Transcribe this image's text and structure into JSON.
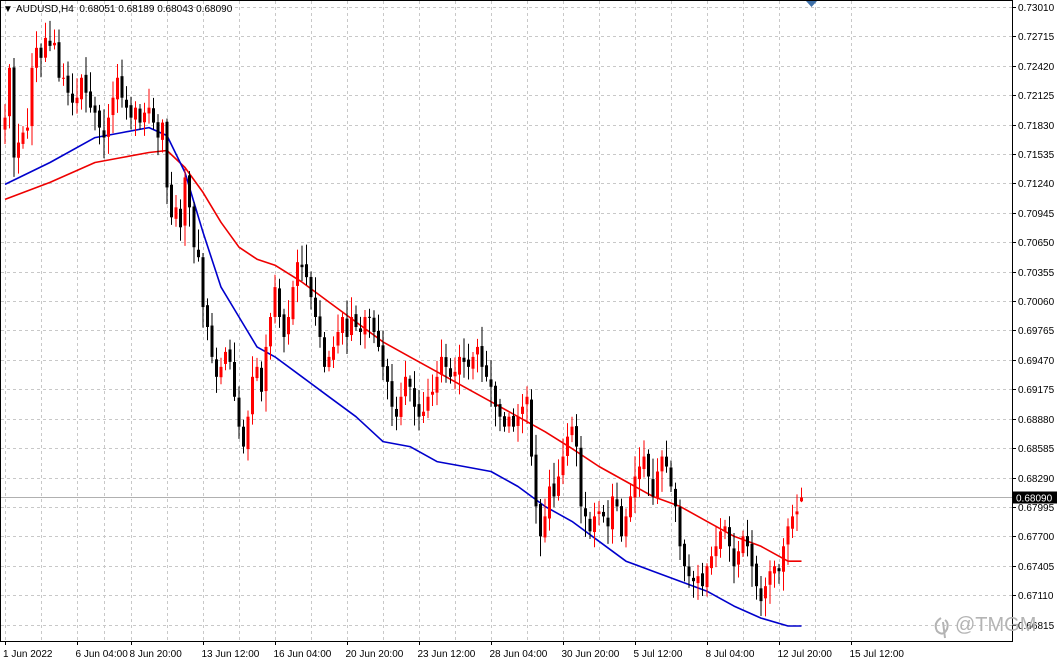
{
  "header": {
    "symbol_line": "AUDUSD,H4  0.68051 0.68189 0.68043 0.68090",
    "menu_arrow": "▼"
  },
  "watermark": {
    "text": "@TMGM"
  },
  "colors": {
    "background": "#ffffff",
    "grid": "#c8c8c8",
    "bull_candle": "#ff0000",
    "bear_candle": "#000000",
    "ma_fast": "#0000cc",
    "ma_slow": "#ee0000",
    "price_label_bg": "#000000",
    "price_line": "#b0b0b0"
  },
  "chart_data": {
    "type": "candlestick",
    "symbol": "AUDUSD",
    "timeframe": "H4",
    "ohlc_header": {
      "open": 0.68051,
      "high": 0.68189,
      "low": 0.68043,
      "close": 0.6809
    },
    "current_price": {
      "value": 0.6809,
      "label": "0.68090"
    },
    "ylim": [
      0.6665,
      0.7307
    ],
    "y_ticks": [
      {
        "value": 0.7301,
        "label": "0.73010"
      },
      {
        "value": 0.72715,
        "label": "0.72715"
      },
      {
        "value": 0.7242,
        "label": "0.72420"
      },
      {
        "value": 0.72125,
        "label": "0.72125"
      },
      {
        "value": 0.7183,
        "label": "0.71830"
      },
      {
        "value": 0.71535,
        "label": "0.71535"
      },
      {
        "value": 0.7124,
        "label": "0.71240"
      },
      {
        "value": 0.70945,
        "label": "0.70945"
      },
      {
        "value": 0.7065,
        "label": "0.70650"
      },
      {
        "value": 0.70355,
        "label": "0.70355"
      },
      {
        "value": 0.7006,
        "label": "0.70060"
      },
      {
        "value": 0.69765,
        "label": "0.69765"
      },
      {
        "value": 0.6947,
        "label": "0.69470"
      },
      {
        "value": 0.69175,
        "label": "0.69175"
      },
      {
        "value": 0.6888,
        "label": "0.68880"
      },
      {
        "value": 0.68585,
        "label": "0.68585"
      },
      {
        "value": 0.6829,
        "label": "0.68290"
      },
      {
        "value": 0.67995,
        "label": "0.67995"
      },
      {
        "value": 0.677,
        "label": "0.67700"
      },
      {
        "value": 0.67405,
        "label": "0.67405"
      },
      {
        "value": 0.6711,
        "label": "0.67110"
      },
      {
        "value": 0.66815,
        "label": "0.66815"
      }
    ],
    "x_ticks": [
      {
        "bar": 0,
        "label": "1 Jun 2022"
      },
      {
        "bar": 16,
        "label": "6 Jun 04:00"
      },
      {
        "bar": 28,
        "label": "8 Jun 20:00"
      },
      {
        "bar": 44,
        "label": "13 Jun 12:00"
      },
      {
        "bar": 60,
        "label": "16 Jun 04:00"
      },
      {
        "bar": 76,
        "label": "20 Jun 20:00"
      },
      {
        "bar": 92,
        "label": "23 Jun 12:00"
      },
      {
        "bar": 108,
        "label": "28 Jun 04:00"
      },
      {
        "bar": 124,
        "label": "30 Jun 20:00"
      },
      {
        "bar": 140,
        "label": "5 Jul 12:00"
      },
      {
        "bar": 156,
        "label": "8 Jul 04:00"
      },
      {
        "bar": 172,
        "label": "12 Jul 20:00"
      },
      {
        "bar": 188,
        "label": "15 Jul 12:00"
      }
    ],
    "close_path": [
      [
        0,
        0.719
      ],
      [
        1,
        0.724
      ],
      [
        2,
        0.715
      ],
      [
        3,
        0.7165
      ],
      [
        4,
        0.7175
      ],
      [
        5,
        0.718
      ],
      [
        6,
        0.724
      ],
      [
        7,
        0.726
      ],
      [
        8,
        0.725
      ],
      [
        9,
        0.727
      ],
      [
        10,
        0.7262
      ],
      [
        11,
        0.7265
      ],
      [
        12,
        0.723
      ],
      [
        13,
        0.723
      ],
      [
        14,
        0.7215
      ],
      [
        15,
        0.7205
      ],
      [
        16,
        0.721
      ],
      [
        17,
        0.723
      ],
      [
        18,
        0.7215
      ],
      [
        19,
        0.72
      ],
      [
        20,
        0.7195
      ],
      [
        21,
        0.718
      ],
      [
        22,
        0.717
      ],
      [
        23,
        0.719
      ],
      [
        24,
        0.721
      ],
      [
        25,
        0.723
      ],
      [
        26,
        0.721
      ],
      [
        27,
        0.72
      ],
      [
        28,
        0.719
      ],
      [
        29,
        0.72
      ],
      [
        30,
        0.7185
      ],
      [
        31,
        0.7195
      ],
      [
        32,
        0.72
      ],
      [
        33,
        0.7185
      ],
      [
        34,
        0.717
      ],
      [
        35,
        0.7185
      ],
      [
        36,
        0.712
      ],
      [
        37,
        0.709
      ],
      [
        38,
        0.71
      ],
      [
        39,
        0.708
      ],
      [
        40,
        0.713
      ],
      [
        41,
        0.71
      ],
      [
        42,
        0.706
      ],
      [
        43,
        0.705
      ],
      [
        44,
        0.7
      ],
      [
        45,
        0.698
      ],
      [
        46,
        0.695
      ],
      [
        47,
        0.693
      ],
      [
        48,
        0.694
      ],
      [
        49,
        0.6955
      ],
      [
        50,
        0.6945
      ],
      [
        51,
        0.691
      ],
      [
        52,
        0.688
      ],
      [
        53,
        0.686
      ],
      [
        54,
        0.689
      ],
      [
        55,
        0.693
      ],
      [
        56,
        0.694
      ],
      [
        57,
        0.6915
      ],
      [
        58,
        0.696
      ],
      [
        59,
        0.699
      ],
      [
        60,
        0.702
      ],
      [
        61,
        0.699
      ],
      [
        62,
        0.697
      ],
      [
        63,
        0.699
      ],
      [
        64,
        0.702
      ],
      [
        65,
        0.7045
      ],
      [
        66,
        0.704
      ],
      [
        67,
        0.703
      ],
      [
        68,
        0.701
      ],
      [
        69,
        0.699
      ],
      [
        70,
        0.697
      ],
      [
        71,
        0.694
      ],
      [
        72,
        0.695
      ],
      [
        73,
        0.696
      ],
      [
        74,
        0.6975
      ],
      [
        75,
        0.699
      ],
      [
        76,
        0.697
      ],
      [
        77,
        0.699
      ],
      [
        78,
        0.698
      ],
      [
        79,
        0.6975
      ],
      [
        80,
        0.699
      ],
      [
        81,
        0.699
      ],
      [
        82,
        0.6975
      ],
      [
        83,
        0.696
      ],
      [
        84,
        0.694
      ],
      [
        85,
        0.6925
      ],
      [
        86,
        0.69
      ],
      [
        87,
        0.689
      ],
      [
        88,
        0.691
      ],
      [
        89,
        0.693
      ],
      [
        90,
        0.692
      ],
      [
        91,
        0.69
      ],
      [
        92,
        0.689
      ],
      [
        93,
        0.6895
      ],
      [
        94,
        0.691
      ],
      [
        95,
        0.6915
      ],
      [
        96,
        0.693
      ],
      [
        97,
        0.695
      ],
      [
        98,
        0.694
      ],
      [
        99,
        0.693
      ],
      [
        100,
        0.6935
      ],
      [
        101,
        0.695
      ],
      [
        102,
        0.6945
      ],
      [
        103,
        0.694
      ],
      [
        104,
        0.695
      ],
      [
        105,
        0.696
      ],
      [
        106,
        0.694
      ],
      [
        107,
        0.693
      ],
      [
        108,
        0.692
      ],
      [
        109,
        0.69
      ],
      [
        110,
        0.689
      ],
      [
        111,
        0.688
      ],
      [
        112,
        0.689
      ],
      [
        113,
        0.688
      ],
      [
        114,
        0.689
      ],
      [
        115,
        0.69
      ],
      [
        116,
        0.691
      ],
      [
        117,
        0.685
      ],
      [
        118,
        0.68
      ],
      [
        119,
        0.677
      ],
      [
        120,
        0.679
      ],
      [
        121,
        0.682
      ],
      [
        122,
        0.681
      ],
      [
        123,
        0.683
      ],
      [
        124,
        0.685
      ],
      [
        125,
        0.687
      ],
      [
        126,
        0.688
      ],
      [
        127,
        0.686
      ],
      [
        128,
        0.68
      ],
      [
        129,
        0.679
      ],
      [
        130,
        0.6775
      ],
      [
        131,
        0.679
      ],
      [
        132,
        0.6795
      ],
      [
        133,
        0.679
      ],
      [
        134,
        0.678
      ],
      [
        135,
        0.681
      ],
      [
        136,
        0.68
      ],
      [
        137,
        0.677
      ],
      [
        138,
        0.679
      ],
      [
        139,
        0.681
      ],
      [
        140,
        0.683
      ],
      [
        141,
        0.684
      ],
      [
        142,
        0.685
      ],
      [
        143,
        0.683
      ],
      [
        144,
        0.681
      ],
      [
        145,
        0.6835
      ],
      [
        146,
        0.685
      ],
      [
        147,
        0.684
      ],
      [
        148,
        0.682
      ],
      [
        149,
        0.68
      ],
      [
        150,
        0.676
      ],
      [
        151,
        0.674
      ],
      [
        152,
        0.673
      ],
      [
        153,
        0.6725
      ],
      [
        154,
        0.673
      ],
      [
        155,
        0.672
      ],
      [
        156,
        0.674
      ],
      [
        157,
        0.675
      ],
      [
        158,
        0.676
      ],
      [
        159,
        0.6775
      ],
      [
        160,
        0.678
      ],
      [
        161,
        0.676
      ],
      [
        162,
        0.674
      ],
      [
        163,
        0.6755
      ],
      [
        164,
        0.677
      ],
      [
        165,
        0.676
      ],
      [
        166,
        0.674
      ],
      [
        167,
        0.672
      ],
      [
        168,
        0.6705
      ],
      [
        169,
        0.672
      ],
      [
        170,
        0.6735
      ],
      [
        171,
        0.674
      ],
      [
        172,
        0.6735
      ],
      [
        173,
        0.676
      ],
      [
        174,
        0.678
      ],
      [
        175,
        0.679
      ],
      [
        176,
        0.6795
      ],
      [
        177,
        0.6809
      ]
    ],
    "ma_fast": {
      "color": "#0000cc",
      "points": [
        [
          0,
          0.7123
        ],
        [
          10,
          0.7145
        ],
        [
          20,
          0.717
        ],
        [
          26,
          0.7175
        ],
        [
          32,
          0.718
        ],
        [
          36,
          0.7172
        ],
        [
          40,
          0.7135
        ],
        [
          44,
          0.7075
        ],
        [
          48,
          0.702
        ],
        [
          52,
          0.699
        ],
        [
          56,
          0.696
        ],
        [
          60,
          0.695
        ],
        [
          66,
          0.693
        ],
        [
          72,
          0.691
        ],
        [
          78,
          0.689
        ],
        [
          84,
          0.6865
        ],
        [
          90,
          0.686
        ],
        [
          96,
          0.6845
        ],
        [
          102,
          0.684
        ],
        [
          108,
          0.6835
        ],
        [
          114,
          0.682
        ],
        [
          120,
          0.68
        ],
        [
          126,
          0.6785
        ],
        [
          132,
          0.6765
        ],
        [
          138,
          0.6745
        ],
        [
          144,
          0.6735
        ],
        [
          150,
          0.6725
        ],
        [
          156,
          0.6715
        ],
        [
          162,
          0.67
        ],
        [
          168,
          0.6688
        ],
        [
          174,
          0.668
        ],
        [
          177,
          0.668
        ]
      ]
    },
    "ma_slow": {
      "color": "#ee0000",
      "points": [
        [
          0,
          0.7108
        ],
        [
          10,
          0.7125
        ],
        [
          20,
          0.7145
        ],
        [
          26,
          0.715
        ],
        [
          32,
          0.7155
        ],
        [
          36,
          0.7157
        ],
        [
          40,
          0.714
        ],
        [
          44,
          0.7115
        ],
        [
          48,
          0.7085
        ],
        [
          52,
          0.706
        ],
        [
          56,
          0.7048
        ],
        [
          60,
          0.7042
        ],
        [
          66,
          0.7025
        ],
        [
          72,
          0.7005
        ],
        [
          78,
          0.6985
        ],
        [
          84,
          0.6965
        ],
        [
          90,
          0.695
        ],
        [
          96,
          0.6935
        ],
        [
          102,
          0.692
        ],
        [
          108,
          0.6905
        ],
        [
          114,
          0.689
        ],
        [
          120,
          0.6875
        ],
        [
          126,
          0.6858
        ],
        [
          132,
          0.684
        ],
        [
          138,
          0.6825
        ],
        [
          144,
          0.681
        ],
        [
          150,
          0.68
        ],
        [
          156,
          0.6785
        ],
        [
          162,
          0.677
        ],
        [
          168,
          0.676
        ],
        [
          174,
          0.6745
        ],
        [
          177,
          0.6745
        ]
      ]
    }
  }
}
